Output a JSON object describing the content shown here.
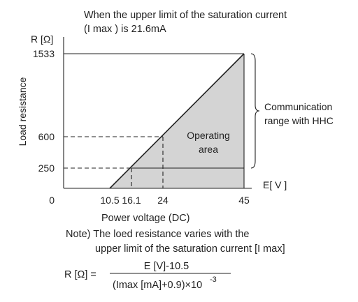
{
  "chart_data": {
    "type": "area",
    "title": "When the upper limit of the saturation current (I max ) is 21.6mA",
    "title_line1": "When the upper limit of the saturation current",
    "title_line2": "(I max ) is 21.6mA",
    "xlabel": "Power voltage (DC)",
    "ylabel": "Load resistance",
    "y_unit": "R [Ω]",
    "x_unit": "E[ V ]",
    "xlim": [
      0,
      45
    ],
    "ylim": [
      0,
      1533
    ],
    "y_ticks": [
      {
        "value": 0,
        "label": "0"
      },
      {
        "value": 250,
        "label": "250"
      },
      {
        "value": 600,
        "label": "600"
      },
      {
        "value": 1533,
        "label": "1533"
      }
    ],
    "x_ticks": [
      {
        "value": 10.5,
        "label": "10.5"
      },
      {
        "value": 16.1,
        "label": "16.1"
      },
      {
        "value": 24,
        "label": "24"
      },
      {
        "value": 45,
        "label": "45"
      }
    ],
    "boundary_line": {
      "x": [
        10.5,
        45
      ],
      "y": [
        0,
        1533
      ]
    },
    "operating_area": [
      {
        "x": 10.5,
        "y": 0
      },
      {
        "x": 45,
        "y": 1533
      },
      {
        "x": 45,
        "y": 0
      }
    ],
    "reference_points": [
      {
        "x": 16.1,
        "y": 250
      },
      {
        "x": 24,
        "y": 600
      }
    ],
    "operating_area_label_line1": "Operating",
    "operating_area_label_line2": "area",
    "bracket_label_line1": "Communication",
    "bracket_label_line2": "range with HHC",
    "communication_range": [
      250,
      1533
    ],
    "note_line1": "Note) The loed resistance varies with the",
    "note_line2": "upper limit of the saturation current [I max]",
    "formula_lhs": "R [Ω] =",
    "formula_numerator": "E [V]-10.5",
    "formula_denominator": "(Imax [mA]+0.9)×10",
    "formula_exponent": "-3",
    "colors": {
      "area_fill": "#d4d4d4",
      "line": "#222222"
    }
  }
}
